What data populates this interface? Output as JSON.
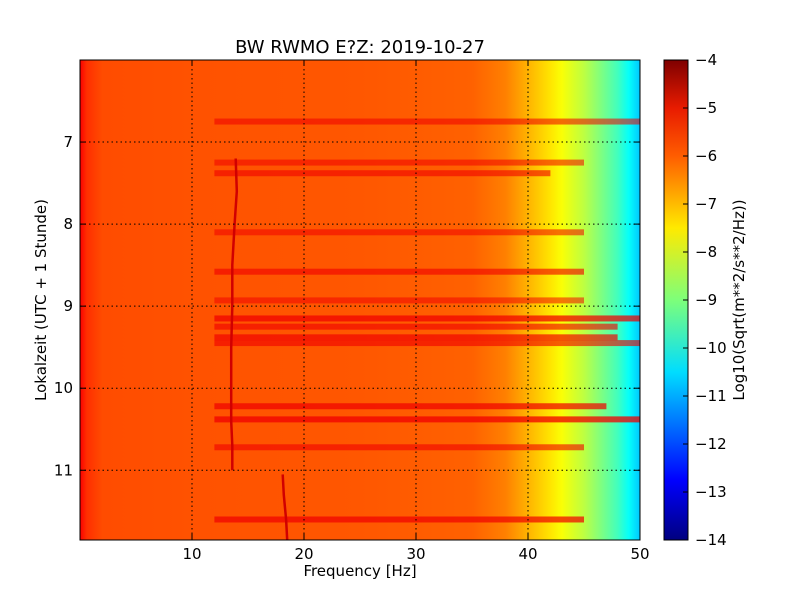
{
  "chart_data": {
    "type": "heatmap",
    "title": "BW RWMO E?Z: 2019-10-27",
    "xlabel": "Frequency [Hz]",
    "ylabel": "Lokalzeit (UTC + 1 Stunde)",
    "xlim": [
      0,
      50
    ],
    "ylim": [
      11.85,
      6.0
    ],
    "x_ticks": [
      10,
      20,
      30,
      40,
      50
    ],
    "y_ticks": [
      7,
      8,
      9,
      10,
      11
    ],
    "grid": true,
    "colormap": "jet",
    "colorbar": {
      "label": "Log10(Sqrt(m**2/s**2/Hz))",
      "range": [
        -14,
        -4
      ],
      "ticks": [
        -4,
        -5,
        -6,
        -7,
        -8,
        -9,
        -10,
        -11,
        -12,
        -13,
        -14
      ]
    },
    "spectrum_profile": {
      "frequency_hz": [
        0,
        0.6,
        2,
        10,
        25,
        35,
        38,
        40,
        42,
        43,
        44,
        45,
        46,
        47,
        48,
        49,
        50
      ],
      "log10_amplitude": [
        -5.2,
        -5.7,
        -6.0,
        -6.05,
        -6.1,
        -6.2,
        -6.5,
        -7.0,
        -7.5,
        -7.8,
        -8.1,
        -8.4,
        -8.8,
        -9.2,
        -9.6,
        -10.2,
        -10.8
      ]
    },
    "horizontal_bands": {
      "lokalzeit": [
        6.75,
        7.25,
        7.38,
        8.1,
        8.58,
        8.93,
        9.15,
        9.25,
        9.38,
        9.45,
        10.22,
        10.38,
        10.72,
        11.6
      ],
      "strength": [
        0.5,
        0.45,
        0.55,
        0.45,
        0.6,
        0.4,
        0.85,
        0.6,
        0.7,
        0.6,
        0.8,
        0.9,
        0.55,
        0.8
      ],
      "freq_extent_hz": [
        50,
        45,
        42,
        45,
        45,
        45,
        50,
        48,
        48,
        50,
        47,
        50,
        45,
        45
      ]
    },
    "tremor_trace": {
      "frequency_hz": [
        13.9,
        14.0,
        13.8,
        13.6,
        13.6,
        13.5,
        13.5,
        13.5,
        13.6,
        13.6
      ],
      "lokalzeit": [
        7.2,
        7.6,
        8.0,
        8.5,
        9.0,
        9.5,
        10.0,
        10.4,
        10.7,
        11.0
      ]
    },
    "secondary_trace": {
      "frequency_hz": [
        18.1,
        18.2,
        18.4,
        18.5
      ],
      "lokalzeit": [
        11.05,
        11.3,
        11.6,
        11.85
      ]
    }
  }
}
